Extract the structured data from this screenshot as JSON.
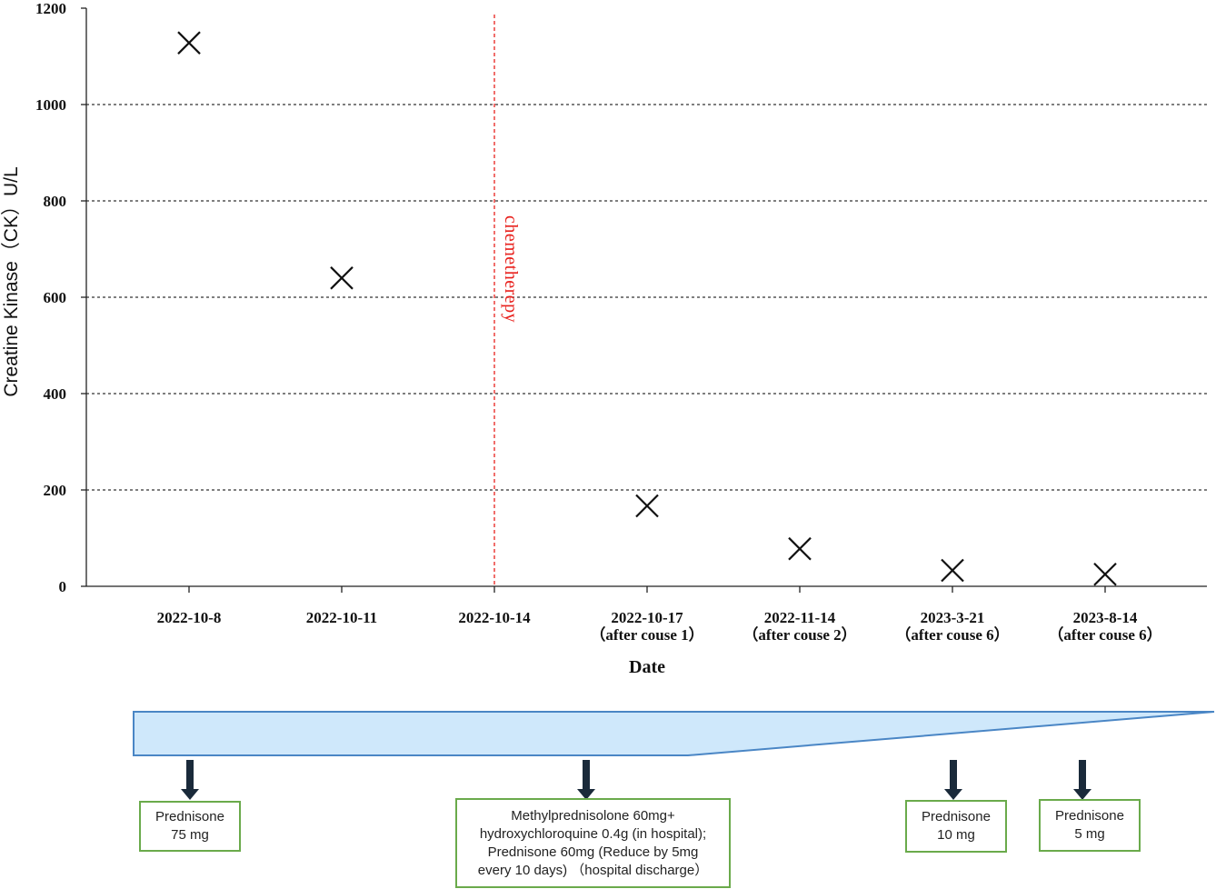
{
  "chart_data": {
    "type": "scatter",
    "title": "",
    "xlabel": "Date",
    "ylabel": "Creatine Kinase（CK）U/L",
    "ylim": [
      0,
      1200
    ],
    "yticks": [
      0,
      200,
      400,
      600,
      800,
      1000,
      1200
    ],
    "grid": "horizontal-dashed",
    "marker": "x",
    "categories": [
      {
        "line1": "2022-10-8",
        "line2": ""
      },
      {
        "line1": "2022-10-11",
        "line2": ""
      },
      {
        "line1": "2022-10-14",
        "line2": ""
      },
      {
        "line1": "2022-10-17",
        "line2": "（after couse 1）"
      },
      {
        "line1": "2022-11-14",
        "line2": "（after couse 2）"
      },
      {
        "line1": "2023-3-21",
        "line2": "（after couse 6）"
      },
      {
        "line1": "2023-8-14",
        "line2": "（after couse 6）"
      }
    ],
    "points": [
      {
        "category": "2022-10-8",
        "value": 1128
      },
      {
        "category": "2022-10-11",
        "value": 640
      },
      {
        "category": "2022-10-17",
        "value": 167
      },
      {
        "category": "2022-11-14",
        "value": 78
      },
      {
        "category": "2023-3-21",
        "value": 33
      },
      {
        "category": "2023-8-14",
        "value": 25
      }
    ],
    "annotation": {
      "category": "2022-10-14",
      "label": "chemetherepy",
      "color": "#e8201c"
    }
  },
  "treatments": [
    {
      "lines": [
        "Prednisone",
        "75 mg"
      ]
    },
    {
      "lines": [
        "Methylprednisolone 60mg+",
        "hydroxychloroquine 0.4g (in hospital);",
        "Prednisone 60mg (Reduce by 5mg",
        "every 10 days) （hospital discharge）"
      ]
    },
    {
      "lines": [
        "Prednisone",
        "10 mg"
      ]
    },
    {
      "lines": [
        "Prednisone",
        "5 mg"
      ]
    }
  ],
  "colors": {
    "taper_fill": "#cfe8fb",
    "taper_stroke": "#4a86c5",
    "box_border": "#6aaa4b",
    "marker": "#111111",
    "annotation": "#e8201c"
  }
}
